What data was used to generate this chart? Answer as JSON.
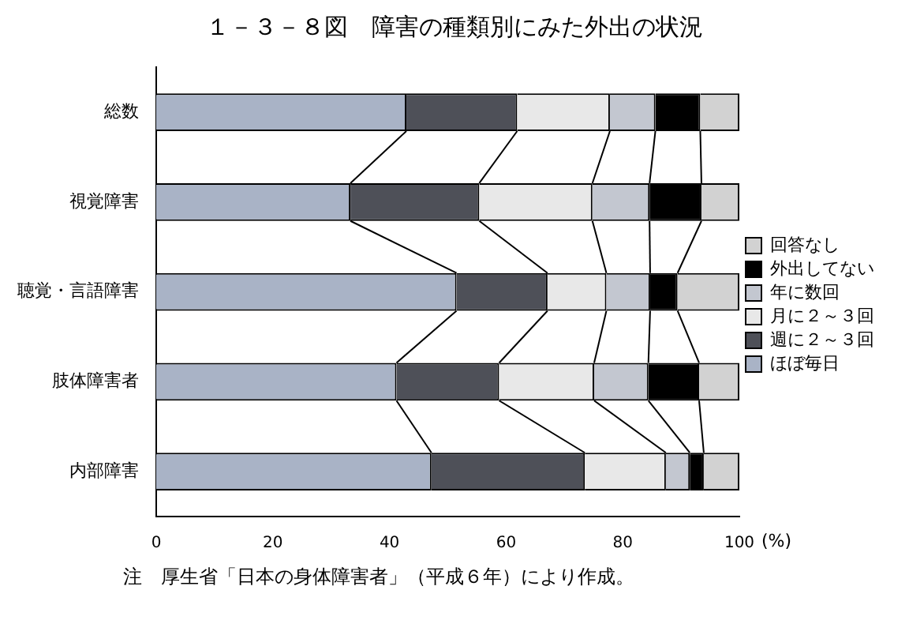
{
  "chart_data": {
    "type": "bar",
    "orientation": "horizontal",
    "stacked": true,
    "title": "１－３－８図　障害の種類別にみた外出の状況",
    "xlabel": "(%)",
    "annotations": [
      "注　厚生省「日本の身体障害者」（平成６年）により作成。"
    ],
    "categories": [
      "総数",
      "視覚障害",
      "聴覚・言語障害",
      "肢体障害者",
      "内部障害"
    ],
    "series": [
      {
        "name": "ほぼ毎日",
        "color": "#a9b3c6",
        "values": [
          42.9,
          33.3,
          51.5,
          41.2,
          47.2
        ]
      },
      {
        "name": "週に２～３回",
        "color": "#4e5058",
        "values": [
          19.0,
          22.1,
          15.6,
          17.6,
          26.3
        ]
      },
      {
        "name": "月に２～３回",
        "color": "#e8e8e8",
        "values": [
          15.9,
          19.4,
          10.1,
          16.3,
          13.9
        ]
      },
      {
        "name": "年に数回",
        "color": "#c3c7d0",
        "values": [
          7.8,
          9.8,
          7.5,
          9.3,
          4.1
        ]
      },
      {
        "name": "外出してない",
        "color": "#000000",
        "values": [
          7.7,
          8.9,
          4.7,
          8.7,
          2.4
        ]
      },
      {
        "name": "回答なし",
        "color": "#d2d2d2",
        "values": [
          6.7,
          6.5,
          10.6,
          6.9,
          6.1
        ]
      }
    ],
    "xlim": [
      0,
      100
    ],
    "xticks": [
      0,
      20,
      40,
      60,
      80,
      100
    ],
    "grid": false,
    "legend": "right"
  }
}
